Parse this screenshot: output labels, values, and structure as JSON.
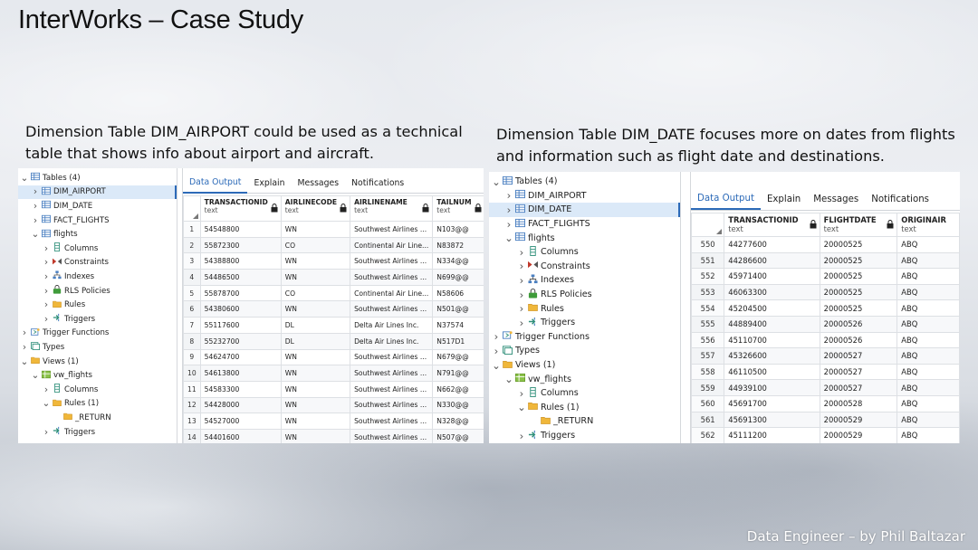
{
  "slide": {
    "title": "InterWorks – Case Study",
    "caption_left": "Dimension Table DIM_AIRPORT could be used as a technical table that shows info about airport and aircraft.",
    "caption_right": "Dimension Table DIM_DATE focuses more on dates from flights and information such as flight date and destinations.",
    "credit": "Data Engineer – by Phil Baltazar"
  },
  "colors": {
    "tab_active": "#2c6ab8",
    "selection": "#dbe9f8",
    "table_icon": "#4a7fc1",
    "folder_icon": "#f0b73a",
    "trigger_icon": "#2f8f7a",
    "constraint_icon": "#c0392b",
    "policy_icon": "#3f9b3a",
    "view_icon": "#8bc34a"
  },
  "left_shot": {
    "tabs": [
      "Data Output",
      "Explain",
      "Messages",
      "Notifications"
    ],
    "tree": [
      {
        "label": "Tables (4)",
        "icon": "tables-icon",
        "caret": "open"
      },
      {
        "label": "DIM_AIRPORT",
        "icon": "table-icon",
        "caret": "closed",
        "selected": true
      },
      {
        "label": "DIM_DATE",
        "icon": "table-icon",
        "caret": "closed"
      },
      {
        "label": "FACT_FLIGHTS",
        "icon": "table-icon",
        "caret": "closed"
      },
      {
        "label": "flights",
        "icon": "table-icon",
        "caret": "open"
      },
      {
        "label": "Columns",
        "icon": "columns-icon",
        "caret": "closed"
      },
      {
        "label": "Constraints",
        "icon": "constraints-icon",
        "caret": "closed"
      },
      {
        "label": "Indexes",
        "icon": "indexes-icon",
        "caret": "closed"
      },
      {
        "label": "RLS Policies",
        "icon": "rls-policies-icon",
        "caret": "closed"
      },
      {
        "label": "Rules",
        "icon": "folder-icon",
        "caret": "closed"
      },
      {
        "label": "Triggers",
        "icon": "triggers-icon",
        "caret": "closed"
      },
      {
        "label": "Trigger Functions",
        "icon": "trigger-functions-icon",
        "caret": "closed"
      },
      {
        "label": "Types",
        "icon": "types-icon",
        "caret": "closed"
      },
      {
        "label": "Views (1)",
        "icon": "views-icon",
        "caret": "open"
      },
      {
        "label": "vw_flights",
        "icon": "view-icon",
        "caret": "open"
      },
      {
        "label": "Columns",
        "icon": "columns-icon",
        "caret": "closed"
      },
      {
        "label": "Rules (1)",
        "icon": "folder-icon",
        "caret": "open"
      },
      {
        "label": "_RETURN",
        "icon": "folder-icon",
        "caret": "none"
      },
      {
        "label": "Triggers",
        "icon": "triggers-icon",
        "caret": "closed"
      }
    ],
    "columns": [
      {
        "name": "TRANSACTIONID",
        "type": "text"
      },
      {
        "name": "AIRLINECODE",
        "type": "text"
      },
      {
        "name": "AIRLINENAME",
        "type": "text"
      },
      {
        "name": "TAILNUM",
        "type": "text"
      }
    ],
    "rows": [
      [
        "1",
        "54548800",
        "WN",
        "Southwest Airlines ...",
        "N103@@"
      ],
      [
        "2",
        "55872300",
        "CO",
        "Continental Air Line...",
        "N83872"
      ],
      [
        "3",
        "54388800",
        "WN",
        "Southwest Airlines ...",
        "N334@@"
      ],
      [
        "4",
        "54486500",
        "WN",
        "Southwest Airlines ...",
        "N699@@"
      ],
      [
        "5",
        "55878700",
        "CO",
        "Continental Air Line...",
        "N58606"
      ],
      [
        "6",
        "54380600",
        "WN",
        "Southwest Airlines ...",
        "N501@@"
      ],
      [
        "7",
        "55117600",
        "DL",
        "Delta Air Lines Inc.",
        "N37574"
      ],
      [
        "8",
        "55232700",
        "DL",
        "Delta Air Lines Inc.",
        "N517D1"
      ],
      [
        "9",
        "54624700",
        "WN",
        "Southwest Airlines ...",
        "N679@@"
      ],
      [
        "10",
        "54613800",
        "WN",
        "Southwest Airlines ...",
        "N791@@"
      ],
      [
        "11",
        "54583300",
        "WN",
        "Southwest Airlines ...",
        "N662@@"
      ],
      [
        "12",
        "54428000",
        "WN",
        "Southwest Airlines ...",
        "N330@@"
      ],
      [
        "13",
        "54527000",
        "WN",
        "Southwest Airlines ...",
        "N328@@"
      ],
      [
        "14",
        "54401600",
        "WN",
        "Southwest Airlines ...",
        "N507@@"
      ]
    ]
  },
  "right_shot": {
    "tabs": [
      "Data Output",
      "Explain",
      "Messages",
      "Notifications"
    ],
    "tree": [
      {
        "label": "Tables (4)",
        "icon": "tables-icon",
        "caret": "open"
      },
      {
        "label": "DIM_AIRPORT",
        "icon": "table-icon",
        "caret": "closed"
      },
      {
        "label": "DIM_DATE",
        "icon": "table-icon",
        "caret": "closed",
        "selected": true
      },
      {
        "label": "FACT_FLIGHTS",
        "icon": "table-icon",
        "caret": "closed"
      },
      {
        "label": "flights",
        "icon": "table-icon",
        "caret": "open"
      },
      {
        "label": "Columns",
        "icon": "columns-icon",
        "caret": "closed"
      },
      {
        "label": "Constraints",
        "icon": "constraints-icon",
        "caret": "closed"
      },
      {
        "label": "Indexes",
        "icon": "indexes-icon",
        "caret": "closed"
      },
      {
        "label": "RLS Policies",
        "icon": "rls-policies-icon",
        "caret": "closed"
      },
      {
        "label": "Rules",
        "icon": "folder-icon",
        "caret": "closed"
      },
      {
        "label": "Triggers",
        "icon": "triggers-icon",
        "caret": "closed"
      },
      {
        "label": "Trigger Functions",
        "icon": "trigger-functions-icon",
        "caret": "closed"
      },
      {
        "label": "Types",
        "icon": "types-icon",
        "caret": "closed"
      },
      {
        "label": "Views (1)",
        "icon": "views-icon",
        "caret": "open"
      },
      {
        "label": "vw_flights",
        "icon": "view-icon",
        "caret": "open"
      },
      {
        "label": "Columns",
        "icon": "columns-icon",
        "caret": "closed"
      },
      {
        "label": "Rules (1)",
        "icon": "folder-icon",
        "caret": "open"
      },
      {
        "label": "_RETURN",
        "icon": "folder-icon",
        "caret": "none"
      },
      {
        "label": "Triggers",
        "icon": "triggers-icon",
        "caret": "closed"
      }
    ],
    "columns": [
      {
        "name": "TRANSACTIONID",
        "type": "text"
      },
      {
        "name": "FLIGHTDATE",
        "type": "text"
      },
      {
        "name": "ORIGINAIR",
        "type": "text"
      }
    ],
    "rows": [
      [
        "550",
        "44277600",
        "20000525",
        "ABQ"
      ],
      [
        "551",
        "44286600",
        "20000525",
        "ABQ"
      ],
      [
        "552",
        "45971400",
        "20000525",
        "ABQ"
      ],
      [
        "553",
        "46063300",
        "20000525",
        "ABQ"
      ],
      [
        "554",
        "45204500",
        "20000525",
        "ABQ"
      ],
      [
        "555",
        "44889400",
        "20000526",
        "ABQ"
      ],
      [
        "556",
        "45110700",
        "20000526",
        "ABQ"
      ],
      [
        "557",
        "45326600",
        "20000527",
        "ABQ"
      ],
      [
        "558",
        "46110500",
        "20000527",
        "ABQ"
      ],
      [
        "559",
        "44939100",
        "20000527",
        "ABQ"
      ],
      [
        "560",
        "45691700",
        "20000528",
        "ABQ"
      ],
      [
        "561",
        "45691300",
        "20000529",
        "ABQ"
      ],
      [
        "562",
        "45111200",
        "20000529",
        "ABQ"
      ]
    ]
  }
}
